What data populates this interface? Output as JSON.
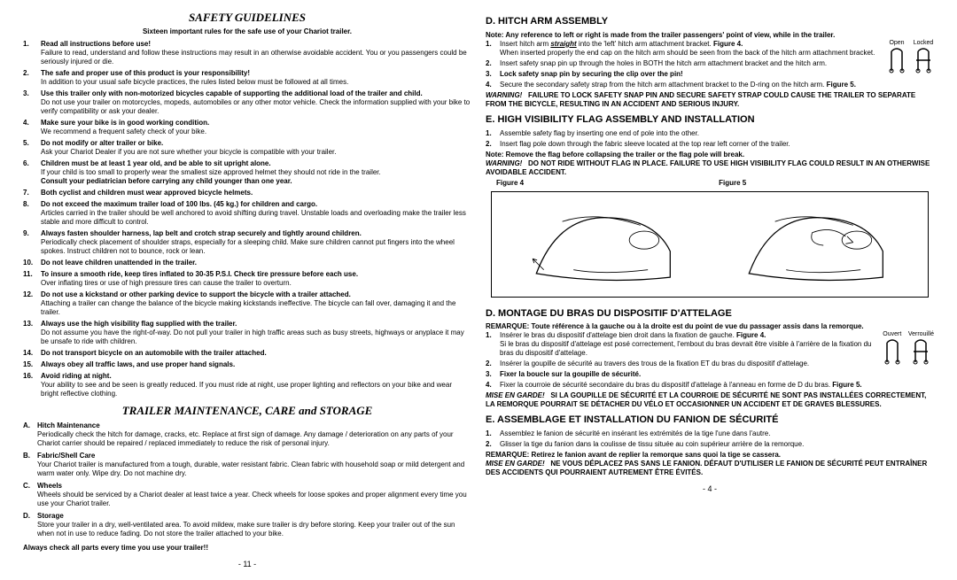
{
  "left": {
    "title": "SAFETY GUIDELINES",
    "subhead": "Sixteen important rules for the safe use of your Chariot trailer.",
    "rules": [
      {
        "n": "1.",
        "bold": "Read all instructions before use!",
        "body": "Failure to read, understand and follow these instructions may result in an otherwise avoidable accident. You or you passengers could be seriously injured or die."
      },
      {
        "n": "2.",
        "bold": "The safe and proper use of this product is your responsibility!",
        "body": "In addition to your usual safe bicycle practices, the rules listed below must be followed at all times."
      },
      {
        "n": "3.",
        "bold": "Use this trailer only with non-motorized bicycles capable of supporting the additional load of the trailer and child.",
        "body": "Do not use your trailer on motorcycles, mopeds, automobiles or any other motor vehicle. Check the information supplied with your bike to verify compatibility or ask your dealer."
      },
      {
        "n": "4.",
        "bold": "Make sure your bike is in good working condition.",
        "body": "We recommend a frequent safety check of your bike."
      },
      {
        "n": "5.",
        "bold": "Do not modify or alter trailer or bike.",
        "body": "Ask your Chariot Dealer if you are not sure whether your bicycle is compatible with your trailer."
      },
      {
        "n": "6.",
        "bold": "Children must be at least 1 year old, and be able to sit upright alone.",
        "body": "If your child is too small to properly wear the smallest size approved helmet they should not ride in the trailer.",
        "bold2": "Consult your pediatrician before carrying any child younger than one year."
      },
      {
        "n": "7.",
        "bold": "Both cyclist and children must wear approved bicycle helmets.",
        "body": ""
      },
      {
        "n": "8.",
        "bold": "Do not exceed the maximum trailer load of 100 lbs. (45 kg.) for children and cargo.",
        "body": "Articles carried in the trailer should be well anchored to avoid shifting during travel. Unstable loads and overloading make the trailer less stable and more difficult to control."
      },
      {
        "n": "9.",
        "bold": "Always fasten shoulder harness, lap belt and crotch strap securely and tightly around children.",
        "body": "Periodically check placement of shoulder straps, especially for a sleeping child. Make sure children cannot put fingers into the wheel spokes. Instruct children not to bounce, rock or lean."
      },
      {
        "n": "10.",
        "bold": "Do not leave children unattended in the trailer.",
        "body": ""
      },
      {
        "n": "11.",
        "bold": "To insure a smooth ride, keep tires inflated to 30-35 P.S.I. Check tire pressure before each use.",
        "body": "Over inflating tires or use of high pressure tires can cause the trailer to overturn."
      },
      {
        "n": "12.",
        "bold": "Do not use a kickstand or other parking device to support the bicycle with a trailer attached.",
        "body": "Attaching a trailer can change the balance of the bicycle making kickstands ineffective. The bicycle can fall over, damaging it and the trailer."
      },
      {
        "n": "13.",
        "bold": "Always use the high visibility flag supplied with the trailer.",
        "body": "Do not assume you have the right-of-way. Do not pull your trailer in high traffic areas such as busy streets, highways or anyplace it may be unsafe to ride with children."
      },
      {
        "n": "14.",
        "bold": "Do not transport bicycle on an automobile with the trailer attached.",
        "body": ""
      },
      {
        "n": "15.",
        "bold": "Always obey all traffic laws, and use proper hand signals.",
        "body": ""
      },
      {
        "n": "16.",
        "bold": "Avoid riding at night.",
        "body": "Your ability to see and be seen is greatly reduced. If you must ride at night, use proper lighting and reflectors on your bike and wear bright reflective clothing."
      }
    ],
    "maint_title": "TRAILER MAINTENANCE, CARE and STORAGE",
    "maint": [
      {
        "l": "A.",
        "t": "Hitch Maintenance",
        "b": "Periodically check the hitch for damage, cracks, etc. Replace at first sign of damage. Any damage / deterioration on any parts of your Chariot carrier should be repaired / replaced immediately to reduce the risk of personal injury."
      },
      {
        "l": "B.",
        "t": "Fabric/Shell Care",
        "b": "Your Chariot trailer is manufactured from a tough, durable, water resistant fabric. Clean fabric with household soap or mild detergent and warm water only. Wipe dry. Do not machine dry."
      },
      {
        "l": "C.",
        "t": "Wheels",
        "b": "Wheels should be serviced by a Chariot dealer at least twice a year. Check wheels for loose spokes and proper alignment every time you use your Chariot trailer."
      },
      {
        "l": "D.",
        "t": "Storage",
        "b": "Store your trailer in a dry, well-ventilated area. To avoid mildew, make sure trailer is dry before storing. Keep your trailer out of the sun when not in use to reduce fading. Do not store the trailer attached to your bike."
      }
    ],
    "always": "Always check all parts every time you use your trailer!!",
    "pagenum": "- 11 -"
  },
  "right": {
    "d_title": "D.  HITCH ARM ASSEMBLY",
    "d_note": "Note:  Any reference to left or right is made from the trailer passengers' point of view, while in the trailer.",
    "d_items": [
      {
        "n": "1.",
        "pre": "Insert hitch arm ",
        "ital": "straight",
        "post": " into the 'left' hitch arm attachment bracket. ",
        "fig": "Figure 4.",
        "body": "When inserted properly the end cap on the hitch arm should be seen from the back of the hitch arm attachment bracket."
      },
      {
        "n": "2.",
        "txt": "Insert safety snap pin up through the holes in BOTH the hitch arm attachment bracket and the hitch arm."
      },
      {
        "n": "3.",
        "bold": "Lock safety snap pin by securing the clip over the pin!"
      },
      {
        "n": "4.",
        "txt": "Secure the secondary safety strap from the hitch arm attachment bracket to the D-ring on the hitch arm. ",
        "fig": "Figure 5."
      }
    ],
    "pin_open": "Open",
    "pin_locked": "Locked",
    "d_warn_pre": "WARNING!",
    "d_warn": "FAILURE TO LOCK SAFETY SNAP PIN AND SECURE SAFETY STRAP COULD CAUSE THE TRAILER TO SEPARATE FROM THE BICYCLE, RESULTING IN AN ACCIDENT AND SERIOUS INJURY.",
    "e_title": "E.  HIGH VISIBILITY FLAG ASSEMBLY AND INSTALLATION",
    "e_items": [
      {
        "n": "1.",
        "txt": "Assemble safety flag by inserting one end of pole into the other."
      },
      {
        "n": "2.",
        "txt": "Insert flag pole down through the fabric sleeve located at the top rear left corner of the trailer."
      }
    ],
    "e_note": "Note:  Remove the flag before collapsing the trailer or the flag pole will break.",
    "e_warn_pre": "WARNING!",
    "e_warn": "DO NOT RIDE WITHOUT FLAG IN PLACE.  FAILURE TO USE HIGH VISIBILITY FLAG COULD RESULT IN AN OTHERWISE AVOIDABLE ACCIDENT.",
    "fig4": "Figure 4",
    "fig5": "Figure 5",
    "fr_d_title": "D.  MONTAGE DU BRAS DU DISPOSITIF D'ATTELAGE",
    "fr_d_note": "REMARQUE:  Toute référence à la gauche ou à la droite est du point de vue du passager assis dans la remorque.",
    "fr_d_items": [
      {
        "n": "1.",
        "txt": "Insérer le bras du dispositif d'attelage bien droit dans la fixation de gauche. ",
        "fig": "Figure 4.",
        "body": "Si le bras du dispositif d'attelage est posé correctement, l'embout du bras devrait être visible à l'arrière de la fixation du bras du dispositif d'attelage."
      },
      {
        "n": "2.",
        "txt": "Insérer la goupille de sécurité au travers des trous de la fixation ET du bras du dispositif d'attelage."
      },
      {
        "n": "3.",
        "bold": "Fixer la boucle sur la goupille de sécurité."
      },
      {
        "n": "4.",
        "txt": "Fixer la courroie de sécurité secondaire du bras du dispositif d'attelage à l'anneau en forme de D du bras. ",
        "fig": "Figure 5."
      }
    ],
    "fr_pin_open": "Ouvert",
    "fr_pin_locked": "Verrouillé",
    "fr_d_warn_pre": "MISE EN GARDE!",
    "fr_d_warn": "SI LA GOUPILLE DE SÉCURITÉ ET LA COURROIE DE SÉCURITÉ NE SONT PAS INSTALLÉES CORRECTEMENT, LA REMORQUE POURRAIT SE DÉTACHER DU VÉLO ET OCCASIONNER UN ACCIDENT ET DE GRAVES BLESSURES.",
    "fr_e_title": "E.  ASSEMBLAGE ET INSTALLATION DU FANION DE SÉCURITÉ",
    "fr_e_items": [
      {
        "n": "1.",
        "txt": "Assemblez le fanion de sécurité en insérant les extrémités de la tige l'une dans l'autre."
      },
      {
        "n": "2.",
        "txt": "Glisser la tige du fanion dans la coulisse de tissu située au coin supérieur arrière de la remorque."
      }
    ],
    "fr_e_note": "REMARQUE:  Retirez le fanion avant de replier la remorque sans quoi la tige se cassera.",
    "fr_e_warn_pre": "MISE EN GARDE!",
    "fr_e_warn": "NE VOUS DÉPLACEZ PAS SANS LE FANION. DÉFAUT D'UTILISER LE FANION DE SÉCURITÉ PEUT ENTRAÎNER DES ACCIDENTS QUI POURRAIENT AUTREMENT ÊTRE ÉVITÉS.",
    "pagenum": "- 4 -"
  }
}
